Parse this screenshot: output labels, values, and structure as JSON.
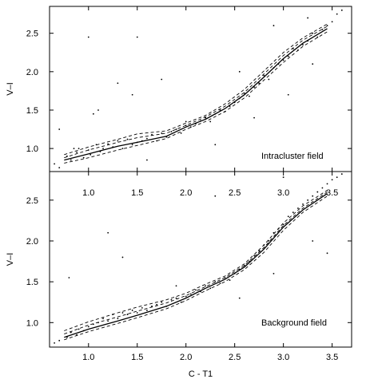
{
  "chart_data": [
    {
      "type": "scatter",
      "panel_label": "Intracluster field",
      "xlabel": "",
      "ylabel": "V–I",
      "xlim": [
        0.6,
        3.7
      ],
      "ylim": [
        0.7,
        2.85
      ],
      "xticks": [
        1.0,
        1.5,
        2.0,
        2.5,
        3.0,
        3.5
      ],
      "yticks": [
        1.0,
        1.5,
        2.0,
        2.5
      ],
      "ytick_labels": [
        "1.0",
        "1.5",
        "2.0",
        "2.5"
      ],
      "grid": false,
      "fit_curve": {
        "x": [
          0.75,
          1.0,
          1.3,
          1.5,
          1.8,
          2.0,
          2.2,
          2.4,
          2.6,
          2.8,
          3.0,
          3.2,
          3.45
        ],
        "y": [
          0.85,
          0.93,
          1.03,
          1.08,
          1.16,
          1.28,
          1.38,
          1.52,
          1.7,
          1.93,
          2.17,
          2.37,
          2.56
        ]
      },
      "envelope_curves": [
        {
          "x": [
            0.75,
            1.0,
            1.3,
            1.5,
            1.8,
            2.0,
            2.2,
            2.4,
            2.6,
            2.8,
            3.0,
            3.2,
            3.45
          ],
          "y": [
            0.92,
            1.02,
            1.12,
            1.19,
            1.23,
            1.33,
            1.43,
            1.58,
            1.77,
            2.01,
            2.25,
            2.44,
            2.62
          ]
        },
        {
          "x": [
            0.75,
            1.0,
            1.3,
            1.5,
            1.8,
            2.0,
            2.2,
            2.4,
            2.6,
            2.8,
            3.0,
            3.2,
            3.45
          ],
          "y": [
            0.88,
            0.98,
            1.08,
            1.14,
            1.2,
            1.3,
            1.41,
            1.55,
            1.73,
            1.97,
            2.21,
            2.41,
            2.59
          ]
        },
        {
          "x": [
            0.75,
            1.0,
            1.3,
            1.5,
            1.8,
            2.0,
            2.2,
            2.4,
            2.6,
            2.8,
            3.0,
            3.2,
            3.45
          ],
          "y": [
            0.81,
            0.88,
            0.98,
            1.04,
            1.13,
            1.25,
            1.35,
            1.48,
            1.66,
            1.89,
            2.12,
            2.33,
            2.52
          ]
        }
      ],
      "scatter_points": {
        "x": [
          0.65,
          0.7,
          0.78,
          0.82,
          0.88,
          0.9,
          0.95,
          1.0,
          1.02,
          1.08,
          1.12,
          1.15,
          1.2,
          1.25,
          1.3,
          1.35,
          1.4,
          1.45,
          1.5,
          1.55,
          1.6,
          1.65,
          1.7,
          1.75,
          1.8,
          1.85,
          1.9,
          1.95,
          2.0,
          2.05,
          2.1,
          2.15,
          2.2,
          2.25,
          2.3,
          2.35,
          2.4,
          2.45,
          2.5,
          2.55,
          2.6,
          2.65,
          2.7,
          2.75,
          2.8,
          2.85,
          2.9,
          2.95,
          3.0,
          3.05,
          3.1,
          3.15,
          3.2,
          3.25,
          3.3,
          3.35,
          3.4,
          3.45,
          3.5,
          3.55,
          3.6,
          1.05,
          1.1,
          1.45,
          2.0,
          0.7,
          1.5,
          1.75,
          2.55,
          3.25,
          1.0,
          1.3,
          2.3,
          2.9,
          3.3,
          0.85,
          1.6,
          2.7,
          3.05
        ],
        "y": [
          0.8,
          0.75,
          0.9,
          0.85,
          0.95,
          1.0,
          0.88,
          0.98,
          0.92,
          1.05,
          0.96,
          1.0,
          1.06,
          1.02,
          1.1,
          1.0,
          1.12,
          1.05,
          1.08,
          1.1,
          1.13,
          1.18,
          1.1,
          1.2,
          1.15,
          1.22,
          1.25,
          1.2,
          1.3,
          1.28,
          1.32,
          1.36,
          1.4,
          1.35,
          1.45,
          1.5,
          1.48,
          1.55,
          1.6,
          1.65,
          1.72,
          1.68,
          1.8,
          1.85,
          1.95,
          1.9,
          2.05,
          2.1,
          2.15,
          2.2,
          2.3,
          2.28,
          2.35,
          2.4,
          2.5,
          2.45,
          2.55,
          2.6,
          2.65,
          2.75,
          2.8,
          1.45,
          1.5,
          1.7,
          1.35,
          1.25,
          2.45,
          1.9,
          2.0,
          2.7,
          2.45,
          1.85,
          1.05,
          2.6,
          2.1,
          1.0,
          0.85,
          1.4,
          1.7
        ]
      }
    },
    {
      "type": "scatter",
      "panel_label": "Background field",
      "xlabel": "C - T1",
      "ylabel": "V–I",
      "xlim": [
        0.6,
        3.7
      ],
      "ylim": [
        0.7,
        2.85
      ],
      "xticks": [
        1.0,
        1.5,
        2.0,
        2.5,
        3.0,
        3.5
      ],
      "yticks": [
        1.0,
        1.5,
        2.0,
        2.5
      ],
      "ytick_labels": [
        "1.0",
        "1.5",
        "2.0",
        "2.5"
      ],
      "grid": false,
      "fit_curve": {
        "x": [
          0.75,
          1.0,
          1.3,
          1.5,
          1.8,
          2.0,
          2.2,
          2.4,
          2.6,
          2.8,
          3.0,
          3.2,
          3.45
        ],
        "y": [
          0.82,
          0.92,
          1.02,
          1.09,
          1.2,
          1.3,
          1.42,
          1.53,
          1.68,
          1.9,
          2.17,
          2.38,
          2.58
        ]
      },
      "envelope_curves": [
        {
          "x": [
            0.75,
            1.0,
            1.3,
            1.5,
            1.8,
            2.0,
            2.2,
            2.4,
            2.6,
            2.8,
            3.0,
            3.2,
            3.45
          ],
          "y": [
            0.9,
            1.01,
            1.12,
            1.19,
            1.28,
            1.36,
            1.47,
            1.57,
            1.72,
            1.95,
            2.22,
            2.43,
            2.62
          ]
        },
        {
          "x": [
            0.75,
            1.0,
            1.3,
            1.5,
            1.8,
            2.0,
            2.2,
            2.4,
            2.6,
            2.8,
            3.0,
            3.2,
            3.45
          ],
          "y": [
            0.86,
            0.97,
            1.07,
            1.14,
            1.24,
            1.33,
            1.44,
            1.55,
            1.7,
            1.92,
            2.19,
            2.4,
            2.6
          ]
        },
        {
          "x": [
            0.75,
            1.0,
            1.3,
            1.5,
            1.8,
            2.0,
            2.2,
            2.4,
            2.6,
            2.8,
            3.0,
            3.2,
            3.45
          ],
          "y": [
            0.79,
            0.89,
            0.99,
            1.06,
            1.17,
            1.27,
            1.39,
            1.5,
            1.65,
            1.86,
            2.13,
            2.35,
            2.55
          ]
        }
      ],
      "scatter_points": {
        "x": [
          0.65,
          0.7,
          0.78,
          0.82,
          0.88,
          0.9,
          0.95,
          1.0,
          1.05,
          1.1,
          1.15,
          1.2,
          1.25,
          1.3,
          1.35,
          1.4,
          1.45,
          1.5,
          1.55,
          1.6,
          1.65,
          1.7,
          1.75,
          1.8,
          1.85,
          1.9,
          1.95,
          2.0,
          2.05,
          2.1,
          2.15,
          2.2,
          2.25,
          2.3,
          2.35,
          2.4,
          2.45,
          2.5,
          2.55,
          2.6,
          2.65,
          2.7,
          2.75,
          2.8,
          2.85,
          2.9,
          2.95,
          3.0,
          3.05,
          3.1,
          3.15,
          3.2,
          3.25,
          3.3,
          3.35,
          3.4,
          3.45,
          3.5,
          3.55,
          3.6,
          0.8,
          1.35,
          1.9,
          2.55,
          2.9,
          3.3,
          1.2,
          2.3,
          3.0,
          3.45
        ],
        "y": [
          0.75,
          0.78,
          0.82,
          0.88,
          0.85,
          0.92,
          0.9,
          0.95,
          0.98,
          1.0,
          1.05,
          1.02,
          1.1,
          1.05,
          1.12,
          1.1,
          1.15,
          1.12,
          1.18,
          1.15,
          1.2,
          1.22,
          1.25,
          1.2,
          1.28,
          1.3,
          1.25,
          1.32,
          1.35,
          1.4,
          1.38,
          1.45,
          1.42,
          1.5,
          1.48,
          1.55,
          1.52,
          1.6,
          1.65,
          1.7,
          1.75,
          1.82,
          1.88,
          1.95,
          2.0,
          2.1,
          2.15,
          2.2,
          2.3,
          2.35,
          2.4,
          2.45,
          2.5,
          2.55,
          2.6,
          2.65,
          2.7,
          2.75,
          2.78,
          2.82,
          1.55,
          1.8,
          1.45,
          1.3,
          1.6,
          2.0,
          2.1,
          2.55,
          2.78,
          1.85
        ]
      }
    }
  ]
}
